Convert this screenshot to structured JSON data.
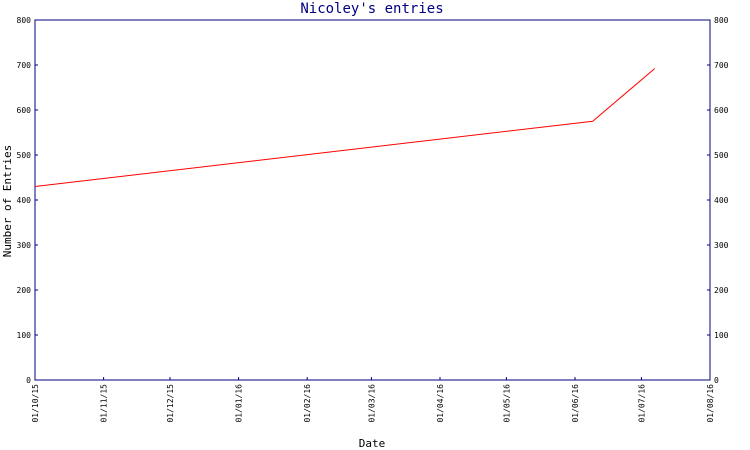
{
  "chart_data": {
    "type": "line",
    "title": "Nicoley's entries",
    "xlabel": "Date",
    "ylabel": "Number of Entries",
    "ylim": [
      0,
      800
    ],
    "yticks": [
      0,
      100,
      200,
      300,
      400,
      500,
      600,
      700,
      800
    ],
    "xlim": [
      "2015-10-01",
      "2016-08-01"
    ],
    "xticks": [
      {
        "date": "2015-10-01",
        "label": "01/10/15"
      },
      {
        "date": "2015-11-01",
        "label": "01/11/15"
      },
      {
        "date": "2015-12-01",
        "label": "01/12/15"
      },
      {
        "date": "2016-01-01",
        "label": "01/01/16"
      },
      {
        "date": "2016-02-01",
        "label": "01/02/16"
      },
      {
        "date": "2016-03-01",
        "label": "01/03/16"
      },
      {
        "date": "2016-04-01",
        "label": "01/04/16"
      },
      {
        "date": "2016-05-01",
        "label": "01/05/16"
      },
      {
        "date": "2016-06-01",
        "label": "01/06/16"
      },
      {
        "date": "2016-07-01",
        "label": "01/07/16"
      },
      {
        "date": "2016-08-01",
        "label": "01/08/16"
      }
    ],
    "series": [
      {
        "color": "#ff0000",
        "points": [
          {
            "x": "2015-10-01",
            "y": 430
          },
          {
            "x": "2016-06-09",
            "y": 575
          },
          {
            "x": "2016-07-07",
            "y": 692
          }
        ]
      }
    ],
    "grid": false,
    "right_axis_mirror": true,
    "colors": {
      "axis": "#000080",
      "plot_border": "#000080",
      "line": "#ff0000"
    }
  }
}
